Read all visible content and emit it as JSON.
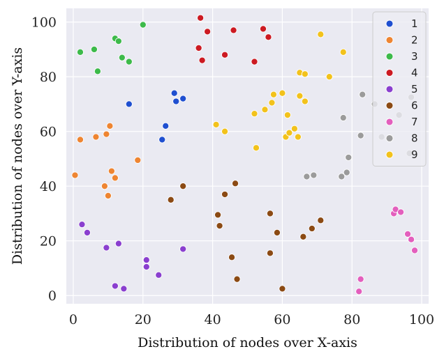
{
  "chart_data": {
    "type": "scatter",
    "title": "",
    "xlabel": "Distribution of nodes over X-axis",
    "ylabel": "Distribution of nodes over Y-axis",
    "xlim": [
      -2,
      102
    ],
    "ylim": [
      -3,
      105
    ],
    "xticks": [
      0,
      20,
      40,
      60,
      80,
      100
    ],
    "yticks": [
      0,
      20,
      40,
      60,
      80,
      100
    ],
    "grid": true,
    "background": "#eaeaf2",
    "legend_position": "top-right",
    "series": [
      {
        "name": "1",
        "color": "#1f4fd0",
        "points": [
          [
            16,
            70
          ],
          [
            25.5,
            57
          ],
          [
            26.5,
            62
          ],
          [
            29,
            74
          ],
          [
            29.5,
            71
          ],
          [
            31.5,
            72
          ]
        ]
      },
      {
        "name": "2",
        "color": "#ee8532",
        "points": [
          [
            0.5,
            44
          ],
          [
            2,
            57
          ],
          [
            6.5,
            58
          ],
          [
            9,
            40
          ],
          [
            9.5,
            59
          ],
          [
            10,
            36.5
          ],
          [
            10.5,
            62
          ],
          [
            11,
            45.5
          ],
          [
            12,
            43
          ],
          [
            18.5,
            49.5
          ]
        ]
      },
      {
        "name": "3",
        "color": "#3dba4a",
        "points": [
          [
            2,
            89
          ],
          [
            6,
            90
          ],
          [
            7,
            82
          ],
          [
            12,
            94
          ],
          [
            13,
            93
          ],
          [
            14,
            87
          ],
          [
            16,
            85.5
          ],
          [
            20,
            99
          ]
        ]
      },
      {
        "name": "4",
        "color": "#cc1a22",
        "points": [
          [
            36.5,
            101.5
          ],
          [
            36,
            90.5
          ],
          [
            37,
            86
          ],
          [
            38.5,
            96.5
          ],
          [
            43.5,
            88
          ],
          [
            46,
            97
          ],
          [
            52,
            85.5
          ],
          [
            54.5,
            97.5
          ],
          [
            56,
            94.5
          ]
        ]
      },
      {
        "name": "5",
        "color": "#8a3fcf",
        "points": [
          [
            2.5,
            26
          ],
          [
            4,
            23
          ],
          [
            9.5,
            17.5
          ],
          [
            12,
            3.5
          ],
          [
            13,
            19
          ],
          [
            14.5,
            2.5
          ],
          [
            21,
            13
          ],
          [
            21,
            10.5
          ],
          [
            24.5,
            7.5
          ],
          [
            31.5,
            17
          ]
        ]
      },
      {
        "name": "6",
        "color": "#8b4a14",
        "points": [
          [
            28,
            35
          ],
          [
            31.5,
            40
          ],
          [
            41.5,
            29.5
          ],
          [
            42,
            25.5
          ],
          [
            43.5,
            37
          ],
          [
            45.5,
            14
          ],
          [
            46.5,
            41
          ],
          [
            47,
            6
          ],
          [
            56.5,
            30
          ],
          [
            56.5,
            15.5
          ],
          [
            58.5,
            23
          ],
          [
            60,
            2.5
          ],
          [
            66,
            21.5
          ],
          [
            68.5,
            24.5
          ],
          [
            71,
            27.5
          ]
        ]
      },
      {
        "name": "7",
        "color": "#e35fbd",
        "points": [
          [
            82,
            1.5
          ],
          [
            82.5,
            6
          ],
          [
            92,
            30
          ],
          [
            92.5,
            31.5
          ],
          [
            94,
            30.5
          ],
          [
            96,
            22.5
          ],
          [
            97,
            20.5
          ],
          [
            98,
            16.5
          ]
        ]
      },
      {
        "name": "8",
        "color": "#9b9b9b",
        "points": [
          [
            67,
            43.5
          ],
          [
            69,
            44
          ],
          [
            77,
            43.5
          ],
          [
            78.5,
            45
          ],
          [
            79,
            50.5
          ],
          [
            77.5,
            65
          ],
          [
            82.5,
            58.5
          ],
          [
            83,
            73.5
          ],
          [
            86.5,
            70
          ],
          [
            88.5,
            58
          ],
          [
            93.5,
            66
          ],
          [
            96.5,
            52
          ],
          [
            97,
            72.5
          ]
        ]
      },
      {
        "name": "9",
        "color": "#f2c21c",
        "points": [
          [
            41,
            62.5
          ],
          [
            43.5,
            60
          ],
          [
            52,
            66.5
          ],
          [
            52.5,
            54
          ],
          [
            55,
            68
          ],
          [
            57,
            70.5
          ],
          [
            57.5,
            73.5
          ],
          [
            60,
            74
          ],
          [
            61,
            58
          ],
          [
            61.5,
            66
          ],
          [
            62,
            59.5
          ],
          [
            63.5,
            61
          ],
          [
            64.5,
            58
          ],
          [
            65,
            81.5
          ],
          [
            65,
            73
          ],
          [
            66.5,
            81
          ],
          [
            66.5,
            71
          ],
          [
            71,
            95.5
          ],
          [
            73.5,
            80
          ],
          [
            77.5,
            89
          ]
        ]
      }
    ]
  }
}
